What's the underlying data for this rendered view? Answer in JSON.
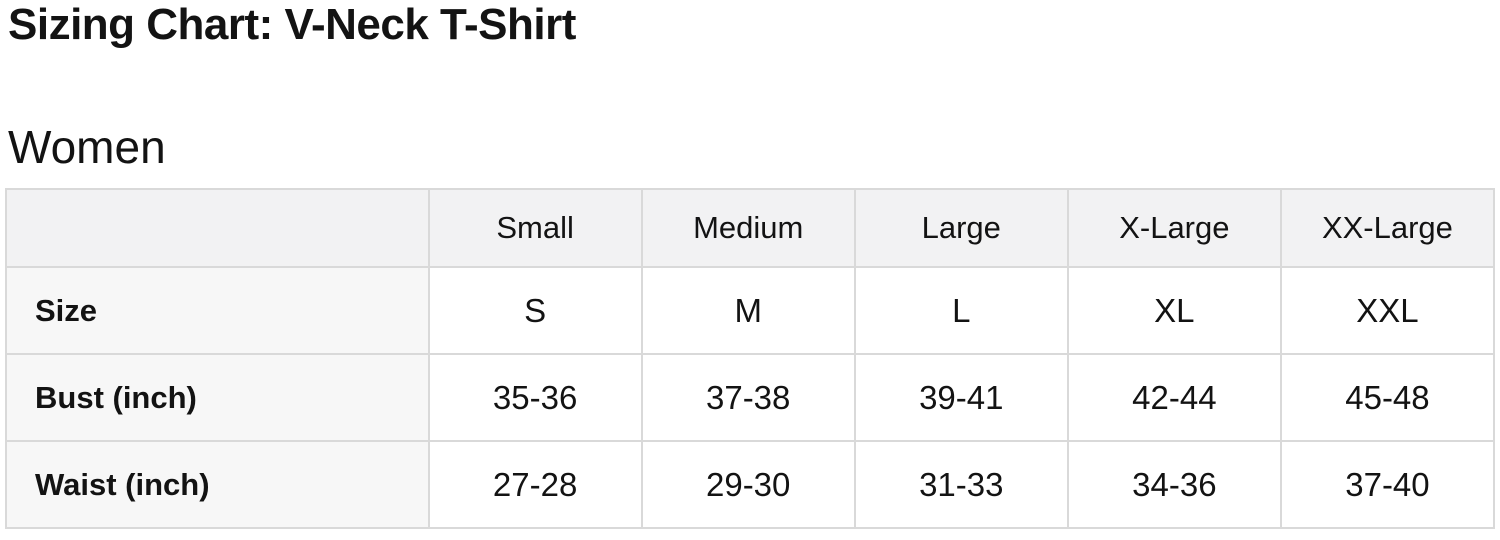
{
  "page": {
    "title": "Sizing Chart: V-Neck T-Shirt",
    "section_heading": "Women"
  },
  "colors": {
    "text": "#131313",
    "table_border": "#d9d9d9",
    "header_cell_bg": "#f2f2f3",
    "label_cell_bg": "#f7f7f7",
    "data_cell_bg": "#ffffff"
  },
  "table": {
    "column_headers": [
      "",
      "Small",
      "Medium",
      "Large",
      "X-Large",
      "XX-Large"
    ],
    "rows": [
      {
        "label": "Size",
        "values": [
          "S",
          "M",
          "L",
          "XL",
          "XXL"
        ]
      },
      {
        "label": "Bust (inch)",
        "values": [
          "35-36",
          "37-38",
          "39-41",
          "42-44",
          "45-48"
        ]
      },
      {
        "label": "Waist (inch)",
        "values": [
          "27-28",
          "29-30",
          "31-33",
          "34-36",
          "37-40"
        ]
      }
    ]
  }
}
